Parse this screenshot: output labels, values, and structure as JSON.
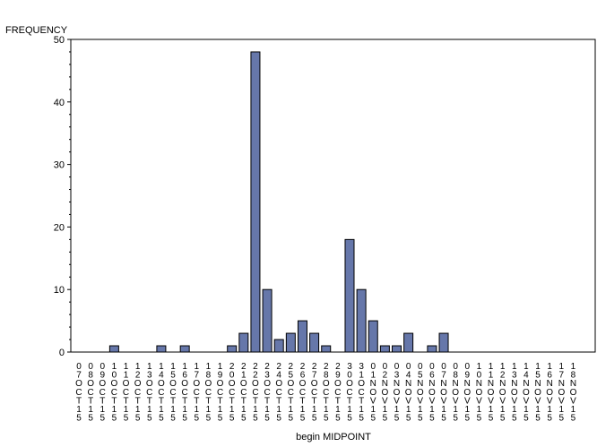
{
  "chart_data": {
    "type": "bar",
    "ylabel": "FREQUENCY",
    "xlabel": "begin MIDPOINT",
    "ylim": [
      0,
      50
    ],
    "yticks": [
      0,
      10,
      20,
      30,
      40,
      50
    ],
    "grid": false,
    "bar_color": "#6677aa",
    "bar_edge_color": "#000000",
    "categories": [
      "07OCT15",
      "08OCT15",
      "09OCT15",
      "10OCT15",
      "11OCT15",
      "12OCT15",
      "13OCT15",
      "14OCT15",
      "15OCT15",
      "16OCT15",
      "17OCT15",
      "18OCT15",
      "19OCT15",
      "20OCT15",
      "21OCT15",
      "22OCT15",
      "23OCT15",
      "24OCT15",
      "25OCT15",
      "26OCT15",
      "27OCT15",
      "28OCT15",
      "29OCT15",
      "30OCT15",
      "31OCT15",
      "01NOV15",
      "02NOV15",
      "03NOV15",
      "04NOV15",
      "05NOV15",
      "06NOV15",
      "07NOV15",
      "08NOV15",
      "09NOV15",
      "10NOV15",
      "11NOV15",
      "12NOV15",
      "13NOV15",
      "14NOV15",
      "15NOV15",
      "16NOV15",
      "17NOV15",
      "18NOV15"
    ],
    "values": [
      0,
      0,
      0,
      1,
      0,
      0,
      0,
      1,
      0,
      1,
      0,
      0,
      0,
      1,
      3,
      48,
      10,
      2,
      3,
      5,
      3,
      1,
      0,
      18,
      10,
      5,
      1,
      1,
      3,
      0,
      1,
      3,
      0,
      0,
      0,
      0,
      0,
      0,
      0,
      0,
      0,
      0,
      0
    ]
  }
}
